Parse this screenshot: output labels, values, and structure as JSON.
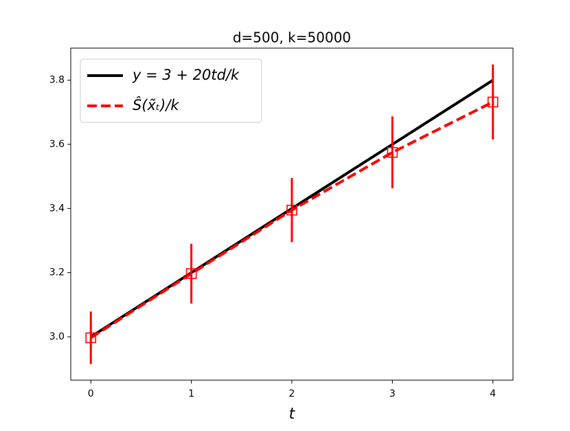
{
  "chart_data": {
    "type": "line",
    "title": "d=500, k=50000",
    "x_label": "t",
    "x": [
      0,
      1,
      2,
      3,
      4
    ],
    "series": [
      {
        "name": "y = 3 + 20td/k",
        "color": "#000000",
        "style": "solid",
        "values": [
          3.0,
          3.2,
          3.4,
          3.6,
          3.8
        ]
      },
      {
        "name": "Ŝ(x̃ₜ)/k",
        "color": "#ff0000",
        "style": "dashed",
        "marker": "square",
        "values": [
          2.997,
          3.197,
          3.395,
          3.575,
          3.732
        ],
        "errors": [
          0.082,
          0.093,
          0.1,
          0.112,
          0.117
        ]
      }
    ],
    "xlim": [
      -0.2,
      4.2
    ],
    "xticks": [
      0,
      1,
      2,
      3,
      4
    ],
    "ylim": [
      2.865,
      3.9
    ],
    "yticks": [
      {
        "value": 3.0,
        "label": "3.0"
      },
      3.2,
      3.4,
      3.6,
      3.8
    ],
    "legend": "upper left",
    "grid": false
  }
}
